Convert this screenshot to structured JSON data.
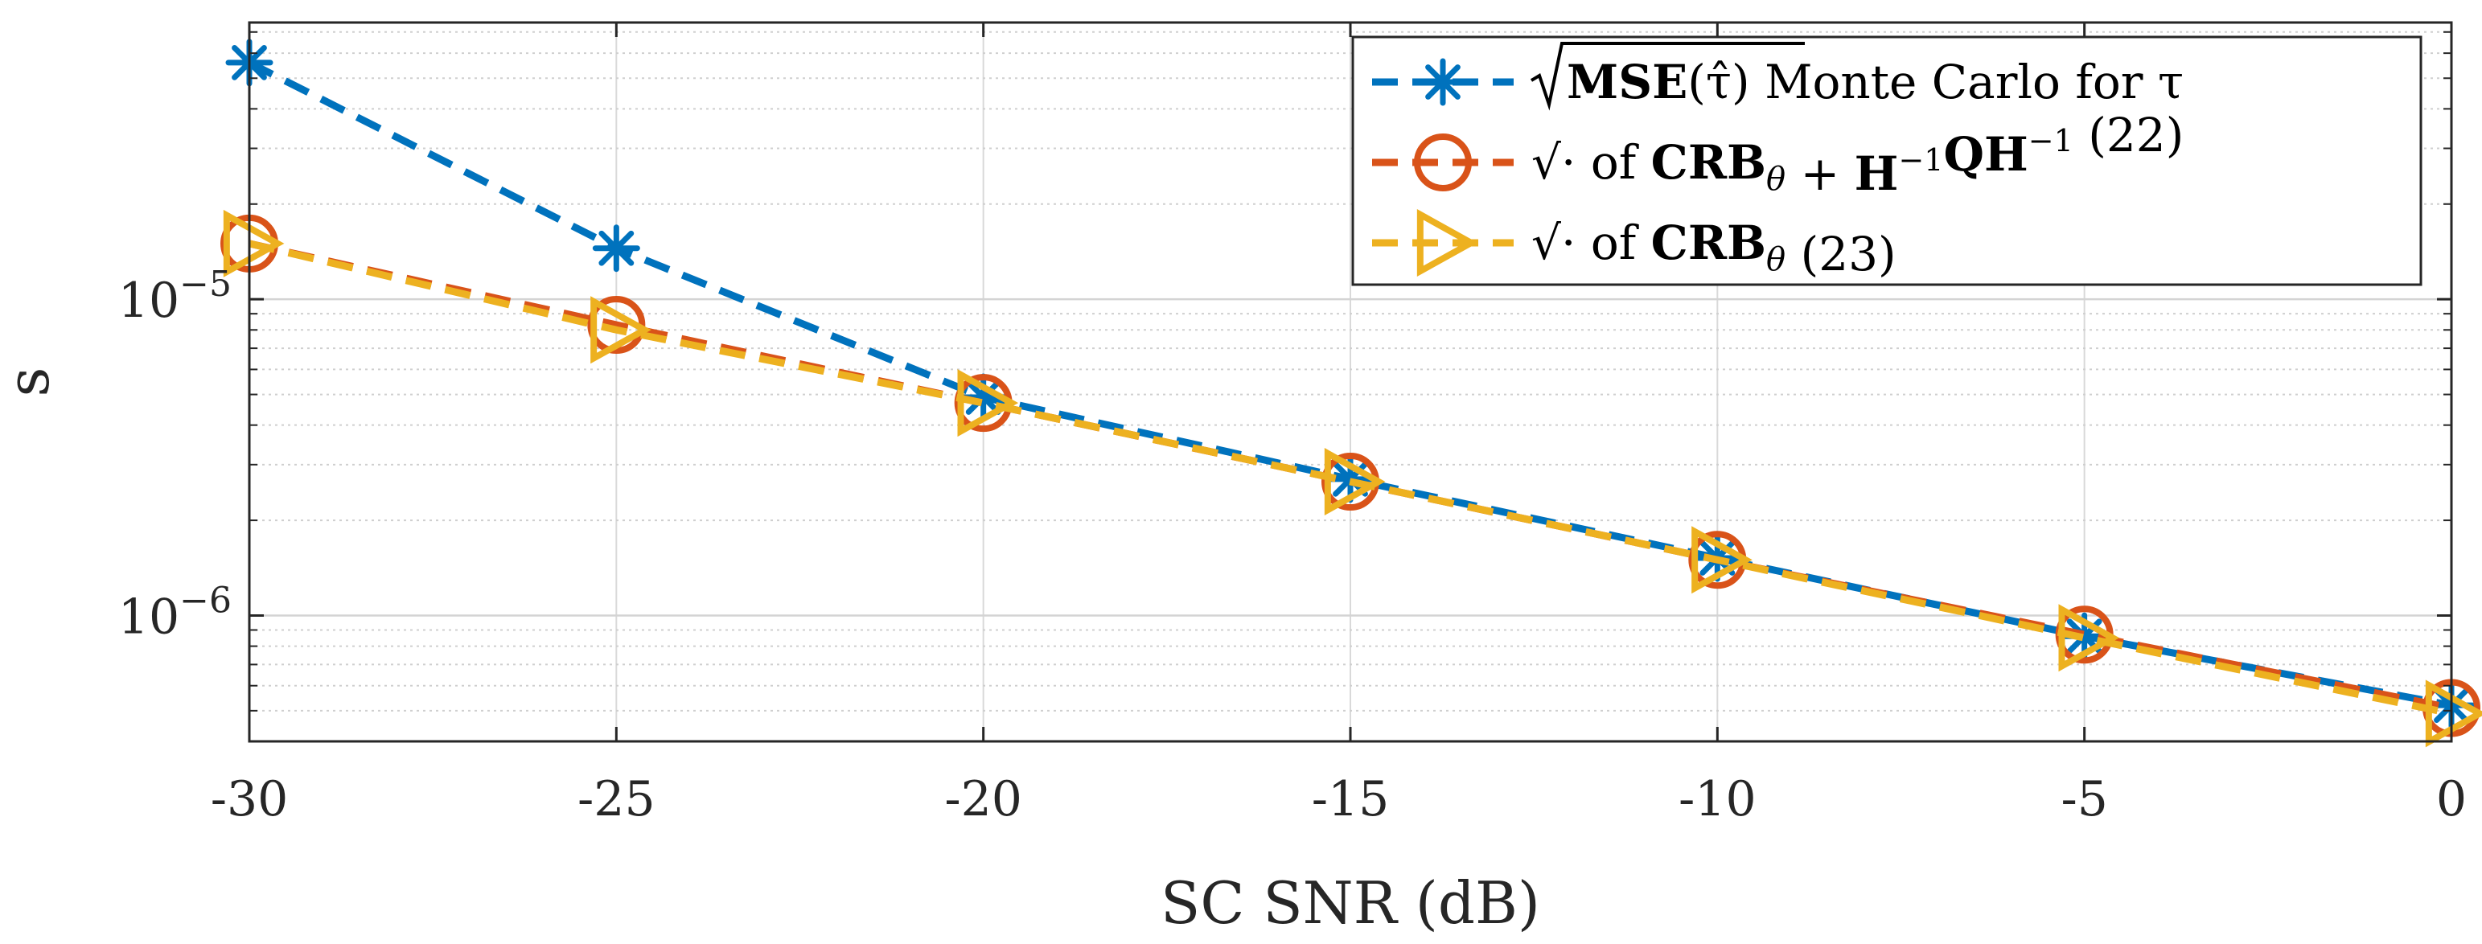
{
  "chart_data": {
    "type": "line",
    "title": "",
    "xlabel": "SC SNR (dB)",
    "ylabel": "s",
    "xlim": [
      -30,
      0
    ],
    "ylim": [
      4e-07,
      7.5e-05
    ],
    "yscale": "log",
    "x": [
      -30,
      -25,
      -20,
      -15,
      -10,
      -5,
      0
    ],
    "x_tick_labels": [
      "-30",
      "-25",
      "-20",
      "-15",
      "-10",
      "-5",
      "0"
    ],
    "y_ticks": [
      {
        "value": 1e-05,
        "base": "10",
        "exp": "−5"
      },
      {
        "value": 1e-06,
        "base": "10",
        "exp": "−6"
      }
    ],
    "grid": true,
    "legend_position": "top-right",
    "series": [
      {
        "name": "sqrt(MSE(tau-hat)) Monte Carlo for tau",
        "color": "#0072BD",
        "marker": "asterisk",
        "values": [
          5.6e-05,
          1.45e-05,
          4.9e-06,
          2.7e-06,
          1.52e-06,
          8.6e-07,
          5.2e-07
        ],
        "legend": {
          "pre": "",
          "bold": "MSE",
          "post": "(τ̂)",
          "suffix": " Monte Carlo for τ"
        }
      },
      {
        "name": "sqrt of CRB_theta + H^-1 Q H^-1 (22)",
        "color": "#D95319",
        "marker": "circle",
        "values": [
          1.5e-05,
          8.3e-06,
          4.7e-06,
          2.65e-06,
          1.5e-06,
          8.7e-07,
          5.1e-07
        ],
        "legend": {
          "pre": "√· of ",
          "bold": "CRB",
          "sub": "θ",
          "plus": " + ",
          "bold2": "H",
          "sup2": "−1",
          "bold3": "QH",
          "sup3": "−1",
          "suffix": " (22)"
        }
      },
      {
        "name": "sqrt of CRB_theta (23)",
        "color": "#EDB120",
        "marker": "triangle-right",
        "values": [
          1.5e-05,
          8e-06,
          4.7e-06,
          2.65e-06,
          1.5e-06,
          8.5e-07,
          4.9e-07
        ],
        "legend": {
          "pre": "√· of ",
          "bold": "CRB",
          "sub": "θ",
          "suffix": " (23)"
        }
      }
    ]
  }
}
